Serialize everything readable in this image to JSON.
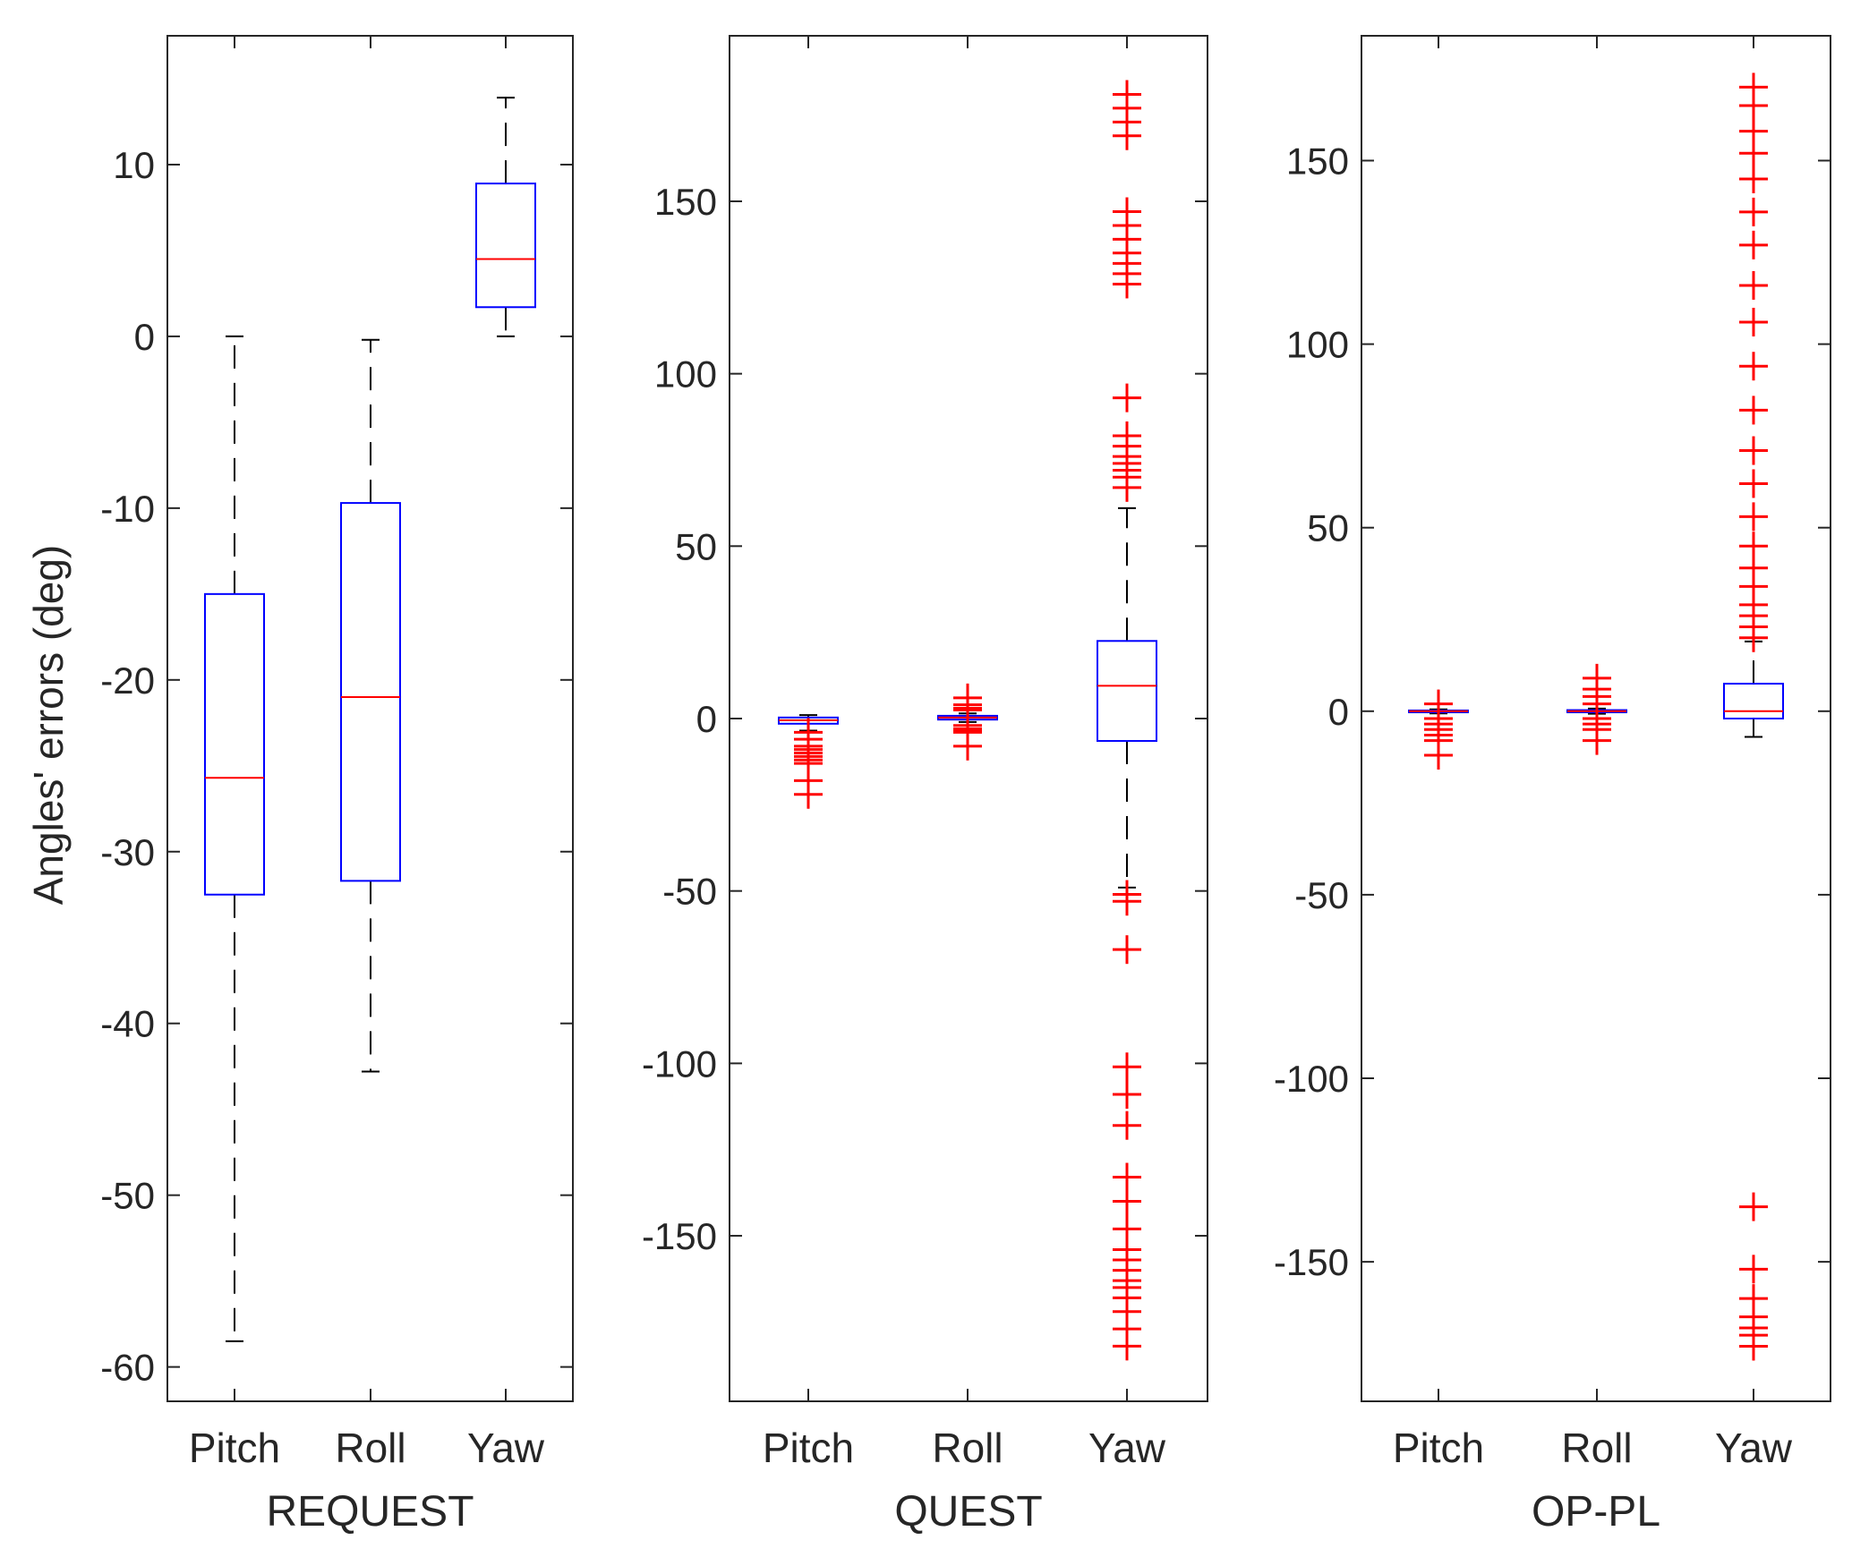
{
  "figure": {
    "ylabel": "Angles' errors  (deg)"
  },
  "colors": {
    "axis": "#262626",
    "box": "#0000ff",
    "median": "#ff0000",
    "outlier": "#ff0000",
    "whisker": "#000000"
  },
  "chart_data": [
    {
      "type": "box",
      "title": "REQUEST",
      "xlabel": "REQUEST",
      "ylabel": "Angles' errors  (deg)",
      "categories": [
        "Pitch",
        "Roll",
        "Yaw"
      ],
      "ylim": [
        -62,
        17.5
      ],
      "yticks": [
        10,
        0,
        -10,
        -20,
        -30,
        -40,
        -50,
        -60
      ],
      "boxes": [
        {
          "name": "Pitch",
          "q1": -32.5,
          "median": -25.7,
          "q3": -15.0,
          "whisker_low": -58.5,
          "whisker_high": 0.0,
          "outliers": []
        },
        {
          "name": "Roll",
          "q1": -31.7,
          "median": -21.0,
          "q3": -9.7,
          "whisker_low": -42.8,
          "whisker_high": -0.2,
          "outliers": []
        },
        {
          "name": "Yaw",
          "q1": 1.7,
          "median": 4.5,
          "q3": 8.9,
          "whisker_low": 0.0,
          "whisker_high": 13.9,
          "outliers": []
        }
      ]
    },
    {
      "type": "box",
      "title": "QUEST",
      "xlabel": "QUEST",
      "categories": [
        "Pitch",
        "Roll",
        "Yaw"
      ],
      "ylim": [
        -198,
        198
      ],
      "yticks": [
        150,
        100,
        50,
        0,
        -50,
        -100,
        -150
      ],
      "boxes": [
        {
          "name": "Pitch",
          "q1": -1.5,
          "median": -0.5,
          "q3": 0.3,
          "whisker_low": -3.5,
          "whisker_high": 1.0,
          "outliers": [
            -4,
            -6,
            -8,
            -9,
            -10,
            -11,
            -12,
            -13,
            -18,
            -22
          ]
        },
        {
          "name": "Roll",
          "q1": -0.3,
          "median": 0.3,
          "q3": 0.8,
          "whisker_low": -1.0,
          "whisker_high": 1.5,
          "outliers": [
            6,
            4,
            3,
            2.5,
            -2,
            -3,
            -3.5,
            -4,
            -8
          ]
        },
        {
          "name": "Yaw",
          "q1": -6.5,
          "median": 9.5,
          "q3": 22.5,
          "whisker_low": -49,
          "whisker_high": 61,
          "outliers": [
            181,
            177,
            173,
            169,
            147,
            143,
            139,
            135,
            132,
            129,
            126,
            93,
            82,
            79,
            76,
            74,
            72,
            70,
            67,
            -51,
            -53,
            -67,
            -101,
            -109,
            -118,
            -133,
            -140,
            -148,
            -154,
            -157,
            -160,
            -163,
            -165,
            -168,
            -172,
            -177,
            -182
          ]
        }
      ]
    },
    {
      "type": "box",
      "title": "OP-PL",
      "xlabel": "OP-PL",
      "categories": [
        "Pitch",
        "Roll",
        "Yaw"
      ],
      "ylim": [
        -188,
        184
      ],
      "yticks": [
        150,
        100,
        50,
        0,
        -50,
        -100,
        -150
      ],
      "boxes": [
        {
          "name": "Pitch",
          "q1": -0.3,
          "median": 0.0,
          "q3": 0.2,
          "whisker_low": -0.6,
          "whisker_high": 0.5,
          "outliers": [
            2,
            -2,
            -3.5,
            -5,
            -6.5,
            -8,
            -12
          ]
        },
        {
          "name": "Roll",
          "q1": -0.3,
          "median": 0.0,
          "q3": 0.3,
          "whisker_low": -0.7,
          "whisker_high": 0.7,
          "outliers": [
            9,
            6,
            4,
            2,
            -2,
            -3.5,
            -5,
            -8
          ]
        },
        {
          "name": "Yaw",
          "q1": -2.0,
          "median": 0.0,
          "q3": 7.5,
          "whisker_low": -7,
          "whisker_high": 19,
          "outliers": [
            170,
            165,
            158,
            152,
            145,
            136,
            127,
            116,
            106,
            94,
            82,
            71,
            62,
            53,
            45,
            39,
            34,
            29,
            26,
            23,
            20,
            -135,
            -152,
            -160,
            -165,
            -168,
            -170,
            -173
          ]
        }
      ]
    }
  ]
}
